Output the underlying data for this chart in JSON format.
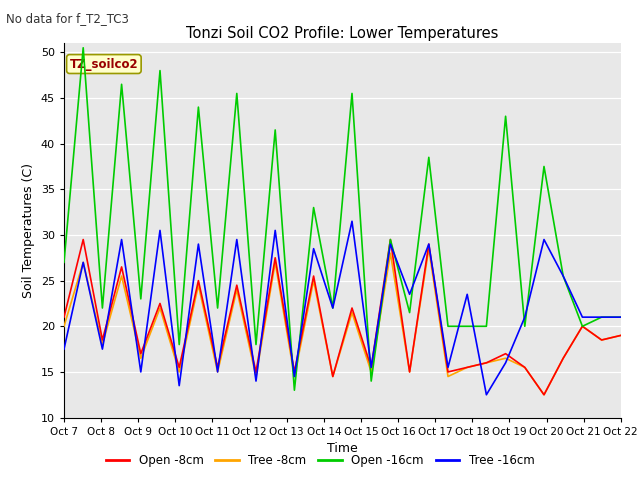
{
  "title": "Tonzi Soil CO2 Profile: Lower Temperatures",
  "subtitle": "No data for f_T2_TC3",
  "ylabel": "Soil Temperatures (C)",
  "xlabel": "Time",
  "ylim": [
    10,
    51
  ],
  "yticks": [
    10,
    15,
    20,
    25,
    30,
    35,
    40,
    45,
    50
  ],
  "xtick_labels": [
    "Oct 7",
    "Oct 8",
    "Oct 9",
    "Oct 10",
    "Oct 11",
    "Oct 12",
    "Oct 13",
    "Oct 14",
    "Oct 15",
    "Oct 16",
    "Oct 17",
    "Oct 18",
    "Oct 19",
    "Oct 20",
    "Oct 21",
    "Oct 22"
  ],
  "legend_label": "TZ_soilco2",
  "series_labels": [
    "Open -8cm",
    "Tree -8cm",
    "Open -16cm",
    "Tree -16cm"
  ],
  "series_colors": [
    "#ff0000",
    "#ffa500",
    "#00cc00",
    "#0000ff"
  ],
  "line_width": 1.2,
  "bg_color": "#e8e8e8",
  "open8": [
    21.0,
    29.5,
    18.5,
    26.5,
    17.0,
    22.5,
    15.5,
    25.0,
    15.5,
    24.5,
    15.0,
    27.5,
    15.0,
    25.5,
    14.5,
    22.0,
    15.5,
    29.5,
    15.0,
    29.0,
    15.0,
    15.5,
    16.0,
    17.0,
    15.5,
    12.5,
    16.5,
    20.0,
    18.5,
    19.0
  ],
  "tree8": [
    20.0,
    27.0,
    18.0,
    25.5,
    16.5,
    22.0,
    15.0,
    24.5,
    15.0,
    24.0,
    14.5,
    27.0,
    14.5,
    25.0,
    14.5,
    21.5,
    15.0,
    28.0,
    15.0,
    28.5,
    14.5,
    15.5,
    16.0,
    16.5,
    15.5,
    12.5,
    16.5,
    20.0,
    18.5,
    19.0
  ],
  "open16": [
    27.0,
    50.5,
    22.0,
    46.5,
    23.0,
    48.0,
    18.0,
    44.0,
    22.0,
    45.5,
    18.0,
    41.5,
    13.0,
    33.0,
    22.0,
    45.5,
    14.0,
    29.5,
    21.5,
    38.5,
    20.0,
    20.0,
    20.0,
    43.0,
    20.0,
    37.5,
    25.5,
    20.0,
    21.0,
    21.0
  ],
  "tree16": [
    17.5,
    27.0,
    17.5,
    29.5,
    15.0,
    30.5,
    13.5,
    29.0,
    15.0,
    29.5,
    14.0,
    30.5,
    14.5,
    28.5,
    22.0,
    31.5,
    15.5,
    29.0,
    23.5,
    29.0,
    15.5,
    23.5,
    12.5,
    16.0,
    21.0,
    29.5,
    25.5,
    21.0,
    21.0,
    21.0
  ]
}
